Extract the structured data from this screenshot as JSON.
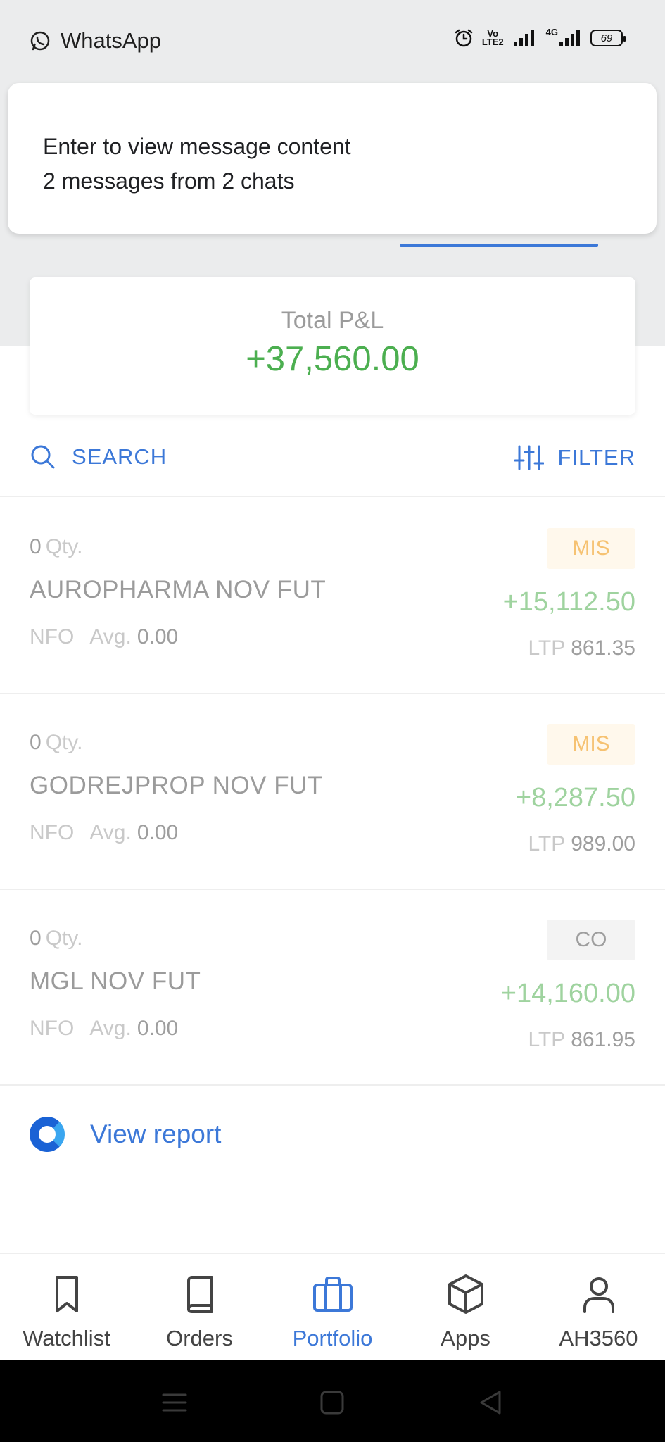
{
  "status_bar": {
    "app_name": "WhatsApp",
    "net_top": "Vo",
    "net_bottom": "LTE2",
    "signal2_label": "4G",
    "battery": "69"
  },
  "notification": {
    "line1": "Enter to view message content",
    "line2": "2 messages from 2 chats"
  },
  "summary": {
    "label": "Total P&L",
    "value": "+37,560.00"
  },
  "toolbar": {
    "search_label": "SEARCH",
    "filter_label": "FILTER"
  },
  "positions": [
    {
      "qty": "0",
      "qty_label": "Qty.",
      "symbol": "AUROPHARMA NOV FUT",
      "exchange": "NFO",
      "avg_label": "Avg.",
      "avg": "0.00",
      "product": "MIS",
      "pnl": "+15,112.50",
      "ltp_label": "LTP",
      "ltp": "861.35"
    },
    {
      "qty": "0",
      "qty_label": "Qty.",
      "symbol": "GODREJPROP NOV FUT",
      "exchange": "NFO",
      "avg_label": "Avg.",
      "avg": "0.00",
      "product": "MIS",
      "pnl": "+8,287.50",
      "ltp_label": "LTP",
      "ltp": "989.00"
    },
    {
      "qty": "0",
      "qty_label": "Qty.",
      "symbol": "MGL NOV FUT",
      "exchange": "NFO",
      "avg_label": "Avg.",
      "avg": "0.00",
      "product": "CO",
      "pnl": "+14,160.00",
      "ltp_label": "LTP",
      "ltp": "861.95"
    }
  ],
  "report": {
    "label": "View report"
  },
  "bottom_nav": {
    "items": [
      {
        "label": "Watchlist",
        "icon": "bookmark-icon"
      },
      {
        "label": "Orders",
        "icon": "book-icon"
      },
      {
        "label": "Portfolio",
        "icon": "briefcase-icon",
        "active": true
      },
      {
        "label": "Apps",
        "icon": "box-icon"
      },
      {
        "label": "AH3560",
        "icon": "user-icon"
      }
    ]
  },
  "colors": {
    "accent": "#3c78d8",
    "profit": "#4caf50",
    "mis_tag": "#f6c272"
  }
}
